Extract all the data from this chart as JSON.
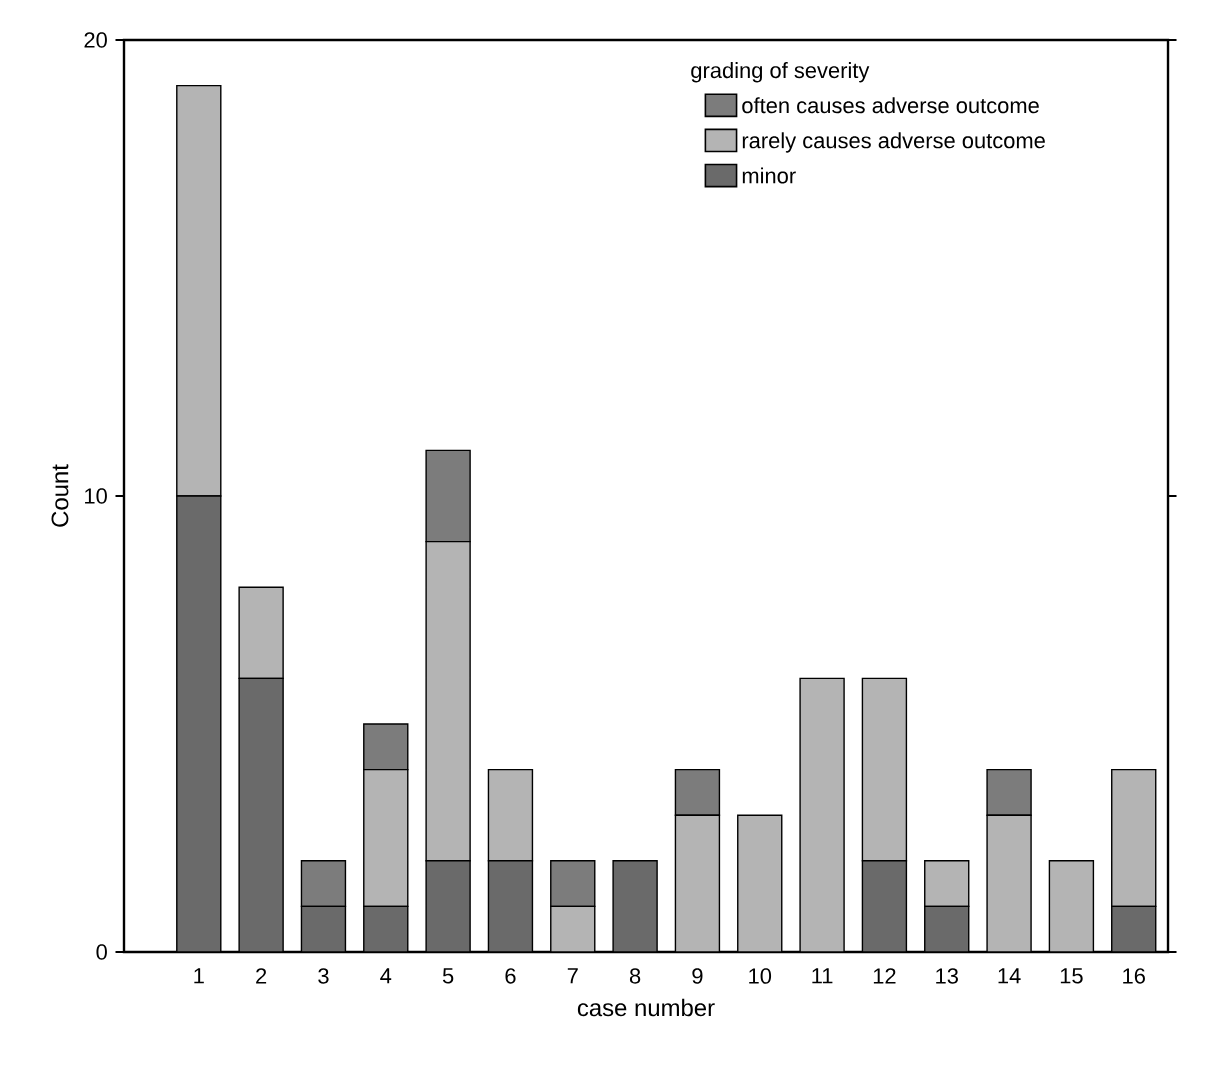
{
  "chart_data": {
    "type": "bar",
    "stacked": true,
    "xlabel": "case number",
    "ylabel": "Count",
    "legend_title": "grading of severity",
    "legend": "top right",
    "categories": [
      "1",
      "2",
      "3",
      "4",
      "5",
      "6",
      "7",
      "8",
      "9",
      "10",
      "11",
      "12",
      "13",
      "14",
      "15",
      "16"
    ],
    "series": [
      {
        "name": "minor",
        "color": "#6a6a6a",
        "values": [
          10,
          6,
          1,
          1,
          2,
          2,
          0,
          2,
          0,
          0,
          0,
          2,
          1,
          0,
          0,
          1
        ]
      },
      {
        "name": "rarely causes adverse outcome",
        "color": "#b4b4b4",
        "values": [
          9,
          2,
          0,
          3,
          7,
          2,
          1,
          0,
          3,
          3,
          6,
          4,
          1,
          3,
          2,
          3
        ]
      },
      {
        "name": "often causes adverse outcome",
        "color": "#7c7c7c",
        "values": [
          0,
          0,
          1,
          1,
          2,
          0,
          1,
          0,
          1,
          0,
          0,
          0,
          0,
          1,
          0,
          0
        ]
      }
    ],
    "ylim": [
      0,
      20
    ],
    "yticks": [
      0,
      10,
      20
    ]
  }
}
